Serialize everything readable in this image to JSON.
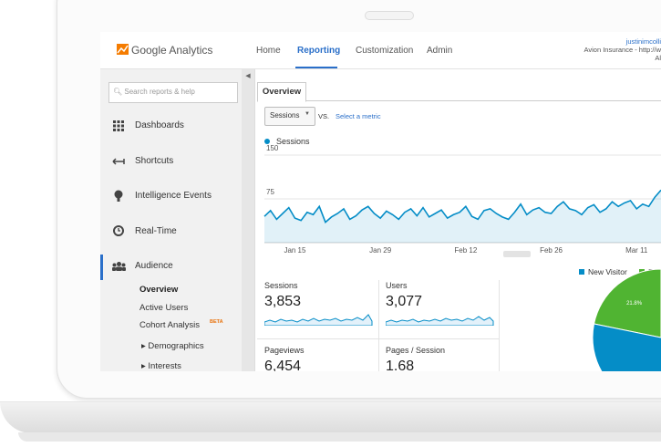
{
  "header": {
    "product": "Google Analytics",
    "nav": [
      "Home",
      "Reporting",
      "Customization",
      "Admin"
    ],
    "account": [
      "justinimcolli",
      "Avion Insurance - http://w",
      "Al"
    ]
  },
  "sidebar": {
    "search": "Search reports & help",
    "items": [
      "Dashboards",
      "Shortcuts",
      "Intelligence Events",
      "Real-Time",
      "Audience"
    ],
    "subitems": [
      "Overview",
      "Active Users",
      "Cohort Analysis",
      "Demographics",
      "Interests"
    ],
    "beta": "BETA"
  },
  "main": {
    "tab": "Overview",
    "metric_select": "Sessions",
    "vs": "VS.",
    "select_metric": "Select a metric",
    "metrics": [
      {
        "label": "Sessions",
        "value": "3,853"
      },
      {
        "label": "Users",
        "value": "3,077"
      },
      {
        "label": "Pageviews",
        "value": "6,454"
      },
      {
        "label": "Pages / Session",
        "value": "1.68"
      }
    ]
  },
  "chart_data": [
    {
      "type": "line",
      "ylim": [
        0,
        150
      ],
      "yticks": [
        75,
        150
      ],
      "grid": true,
      "categories": [
        null,
        null,
        null,
        null,
        null,
        "Jan 15",
        null,
        null,
        null,
        null,
        null,
        null,
        null,
        null,
        null,
        null,
        null,
        null,
        null,
        "Jan 29",
        null,
        null,
        null,
        null,
        null,
        null,
        null,
        null,
        null,
        null,
        null,
        null,
        null,
        "Feb 12",
        null,
        null,
        null,
        null,
        null,
        null,
        null,
        null,
        null,
        null,
        null,
        null,
        null,
        "Feb 26",
        null,
        null,
        null,
        null,
        null,
        null,
        null,
        null,
        null,
        null,
        null,
        null,
        null,
        "Mar 11",
        null,
        null,
        null,
        null
      ],
      "series": [
        {
          "name": "Sessions",
          "color": "#058dc7",
          "values": [
            45,
            55,
            40,
            50,
            60,
            42,
            38,
            52,
            48,
            62,
            35,
            44,
            50,
            58,
            40,
            46,
            56,
            62,
            50,
            42,
            54,
            48,
            40,
            52,
            58,
            46,
            60,
            44,
            50,
            56,
            42,
            48,
            52,
            62,
            45,
            40,
            55,
            58,
            50,
            44,
            40,
            52,
            66,
            48,
            56,
            60,
            52,
            50,
            62,
            70,
            58,
            55,
            48,
            60,
            65,
            52,
            58,
            70,
            62,
            68,
            72,
            58,
            66,
            62,
            78,
            90
          ]
        }
      ]
    },
    {
      "type": "pie",
      "categories": [
        "New Visitor",
        "Returning Visitor"
      ],
      "colors": [
        "#058dc7",
        "#50b432"
      ],
      "values": [
        78.2,
        21.8
      ],
      "value_labels": [
        null,
        "21.8%"
      ]
    }
  ]
}
